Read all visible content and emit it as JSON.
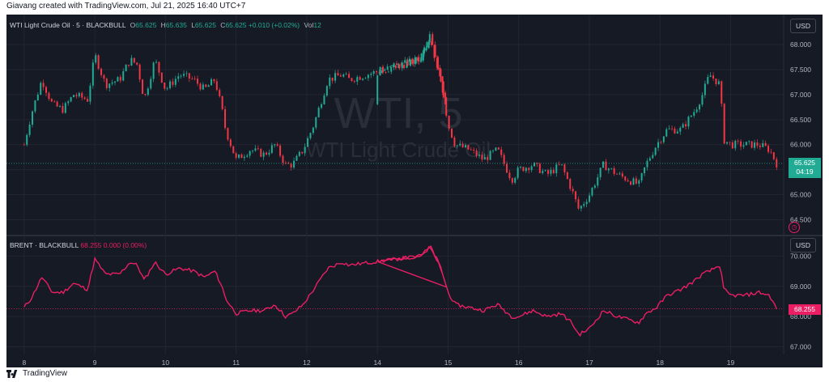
{
  "header": {
    "credit": "Giavang created with TradingView.com, Jul 21, 2025 16:40 UTC+7"
  },
  "footer": {
    "brand": "TradingView"
  },
  "colors": {
    "background": "#161a25",
    "grid": "#232632",
    "up": "#22ab94",
    "down": "#f23645",
    "brent": "#e91e63",
    "text": "#b2b5be"
  },
  "watermark": {
    "line1": "WTI, 5",
    "line2": "WTI Light Crude Oil"
  },
  "wti": {
    "title": "WTI Light Crude Oil · 5 · BLACKBULL",
    "open_label": "O",
    "open": "65.625",
    "high_label": "H",
    "high": "65.635",
    "low_label": "L",
    "low": "65.625",
    "close_label": "C",
    "close": "65.625",
    "change": "+0.010 (+0.02%)",
    "vol_label": "Vol",
    "vol": "12",
    "currency": "USD",
    "last_price": "65.625",
    "countdown": "04:19"
  },
  "brent": {
    "title": "BRENT · BLACKBULL",
    "value": "68.255",
    "change": "0.000 (0.00%)",
    "currency": "USD",
    "last_price": "68.255"
  },
  "chart_data": [
    {
      "type": "candlestick",
      "title": "WTI Light Crude Oil · 5 · BLACKBULL",
      "xlabel": "",
      "ylabel": "",
      "ylim": [
        64.2,
        68.6
      ],
      "y_ticks": [
        "64.500",
        "65.000",
        "65.500",
        "66.000",
        "66.500",
        "67.000",
        "67.500",
        "68.000"
      ],
      "x_ticks": [
        "8",
        "9",
        "10",
        "11",
        "12",
        "14",
        "15",
        "16",
        "17",
        "18",
        "19"
      ],
      "grid": true,
      "x": [
        8.0,
        8.1,
        8.25,
        8.4,
        8.55,
        8.7,
        8.9,
        9.0,
        9.15,
        9.35,
        9.5,
        9.6,
        9.7,
        9.85,
        10.0,
        10.2,
        10.4,
        10.55,
        10.7,
        10.8,
        10.85,
        11.0,
        11.2,
        11.4,
        11.55,
        11.7,
        11.8,
        11.95,
        12.1,
        12.3,
        12.5,
        12.6,
        14.6,
        14.75,
        14.8,
        14.9,
        15.0,
        15.1,
        15.3,
        15.5,
        15.7,
        15.9,
        16.0,
        16.2,
        16.4,
        16.6,
        16.75,
        16.85,
        17.0,
        17.2,
        17.4,
        17.55,
        17.7,
        17.8,
        17.95,
        18.1,
        18.3,
        18.5,
        18.6,
        18.7,
        18.85,
        18.9,
        19.0,
        19.2,
        19.4,
        19.55,
        19.65
      ],
      "values": [
        66.0,
        66.6,
        67.3,
        66.8,
        66.7,
        67.0,
        66.9,
        67.8,
        67.2,
        67.3,
        67.7,
        67.6,
        66.9,
        67.7,
        67.1,
        67.4,
        67.3,
        67.1,
        67.3,
        66.7,
        66.3,
        65.7,
        65.9,
        65.8,
        66.0,
        65.6,
        65.6,
        65.9,
        66.4,
        67.3,
        67.4,
        67.3,
        67.7,
        68.2,
        67.8,
        67.3,
        66.4,
        66.0,
        65.9,
        65.7,
        65.9,
        65.3,
        65.5,
        65.6,
        65.4,
        65.6,
        65.1,
        64.7,
        65.0,
        65.6,
        65.4,
        65.3,
        65.2,
        65.6,
        66.0,
        66.3,
        66.3,
        66.7,
        67.0,
        67.4,
        67.2,
        66.1,
        66.0,
        66.0,
        66.0,
        65.9,
        65.625
      ]
    },
    {
      "type": "line",
      "title": "BRENT · BLACKBULL",
      "xlabel": "",
      "ylabel": "",
      "ylim": [
        66.8,
        70.6
      ],
      "y_ticks": [
        "67.000",
        "68.000",
        "69.000",
        "70.000"
      ],
      "x_ticks": [
        "8",
        "9",
        "10",
        "11",
        "12",
        "14",
        "15",
        "16",
        "17",
        "18",
        "19"
      ],
      "grid": true,
      "x": [
        8.0,
        8.1,
        8.25,
        8.4,
        8.55,
        8.7,
        8.9,
        9.0,
        9.15,
        9.35,
        9.5,
        9.6,
        9.7,
        9.85,
        10.0,
        10.2,
        10.4,
        10.55,
        10.7,
        10.8,
        10.85,
        11.0,
        11.2,
        11.4,
        11.55,
        11.7,
        11.8,
        11.95,
        12.1,
        12.3,
        12.5,
        12.6,
        14.6,
        14.75,
        14.8,
        14.9,
        15.0,
        15.1,
        15.3,
        15.5,
        15.7,
        15.9,
        16.0,
        16.2,
        16.4,
        16.6,
        16.75,
        16.85,
        17.0,
        17.2,
        17.4,
        17.55,
        17.7,
        17.8,
        17.95,
        18.1,
        18.3,
        18.5,
        18.6,
        18.7,
        18.85,
        18.9,
        19.0,
        19.2,
        19.4,
        19.55,
        19.65
      ],
      "values": [
        68.3,
        68.6,
        69.3,
        68.8,
        68.8,
        69.1,
        68.9,
        69.9,
        69.4,
        69.4,
        69.8,
        69.7,
        69.2,
        69.8,
        69.4,
        69.6,
        69.5,
        69.3,
        69.5,
        69.0,
        68.6,
        68.1,
        68.2,
        68.2,
        68.4,
        68.0,
        68.1,
        68.4,
        68.9,
        69.6,
        69.8,
        69.7,
        70.0,
        70.3,
        70.1,
        69.6,
        68.8,
        68.4,
        68.3,
        68.2,
        68.4,
        68.0,
        68.0,
        68.2,
        68.0,
        68.1,
        67.8,
        67.4,
        67.6,
        68.2,
        68.0,
        67.9,
        67.8,
        68.1,
        68.3,
        68.7,
        68.9,
        69.2,
        69.4,
        69.5,
        69.7,
        68.9,
        68.7,
        68.7,
        68.8,
        68.7,
        68.255
      ]
    }
  ]
}
